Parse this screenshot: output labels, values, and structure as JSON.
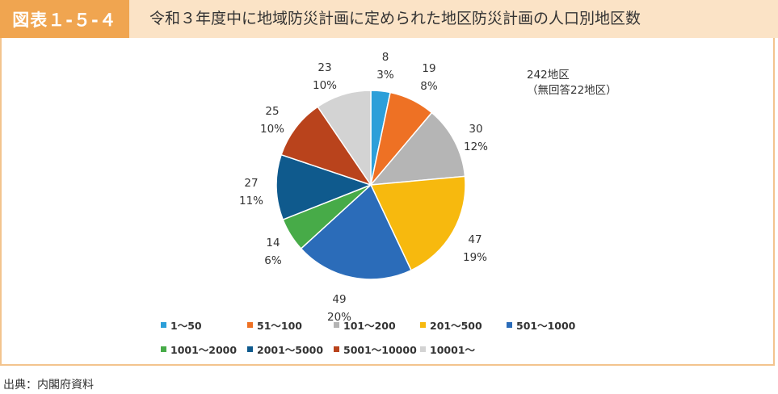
{
  "header": {
    "label": "図表１-５-４",
    "title": "令和３年度中に地域防災計画に定められた地区防災計画の人口別地区数"
  },
  "note": {
    "line1": "242地区",
    "line2": "（無回答22地区）"
  },
  "source": "出典：内閣府資料",
  "chart_data": {
    "type": "pie",
    "categories": [
      "1〜50",
      "51〜100",
      "101〜200",
      "201〜500",
      "501〜1000",
      "1001〜2000",
      "2001〜5000",
      "5001〜10000",
      "10001〜"
    ],
    "values": [
      8,
      19,
      30,
      47,
      49,
      14,
      27,
      25,
      23
    ],
    "percent_labels": [
      "3%",
      "8%",
      "12%",
      "19%",
      "20%",
      "6%",
      "11%",
      "10%",
      "10%"
    ],
    "colors": [
      "#2c9fd9",
      "#ee7124",
      "#b5b5b5",
      "#f7b90e",
      "#2b6cb9",
      "#47ab48",
      "#0f5a8d",
      "#b9431c",
      "#d3d3d3"
    ],
    "start": "12 o'clock",
    "direction": "clockwise",
    "legend_position": "bottom"
  }
}
